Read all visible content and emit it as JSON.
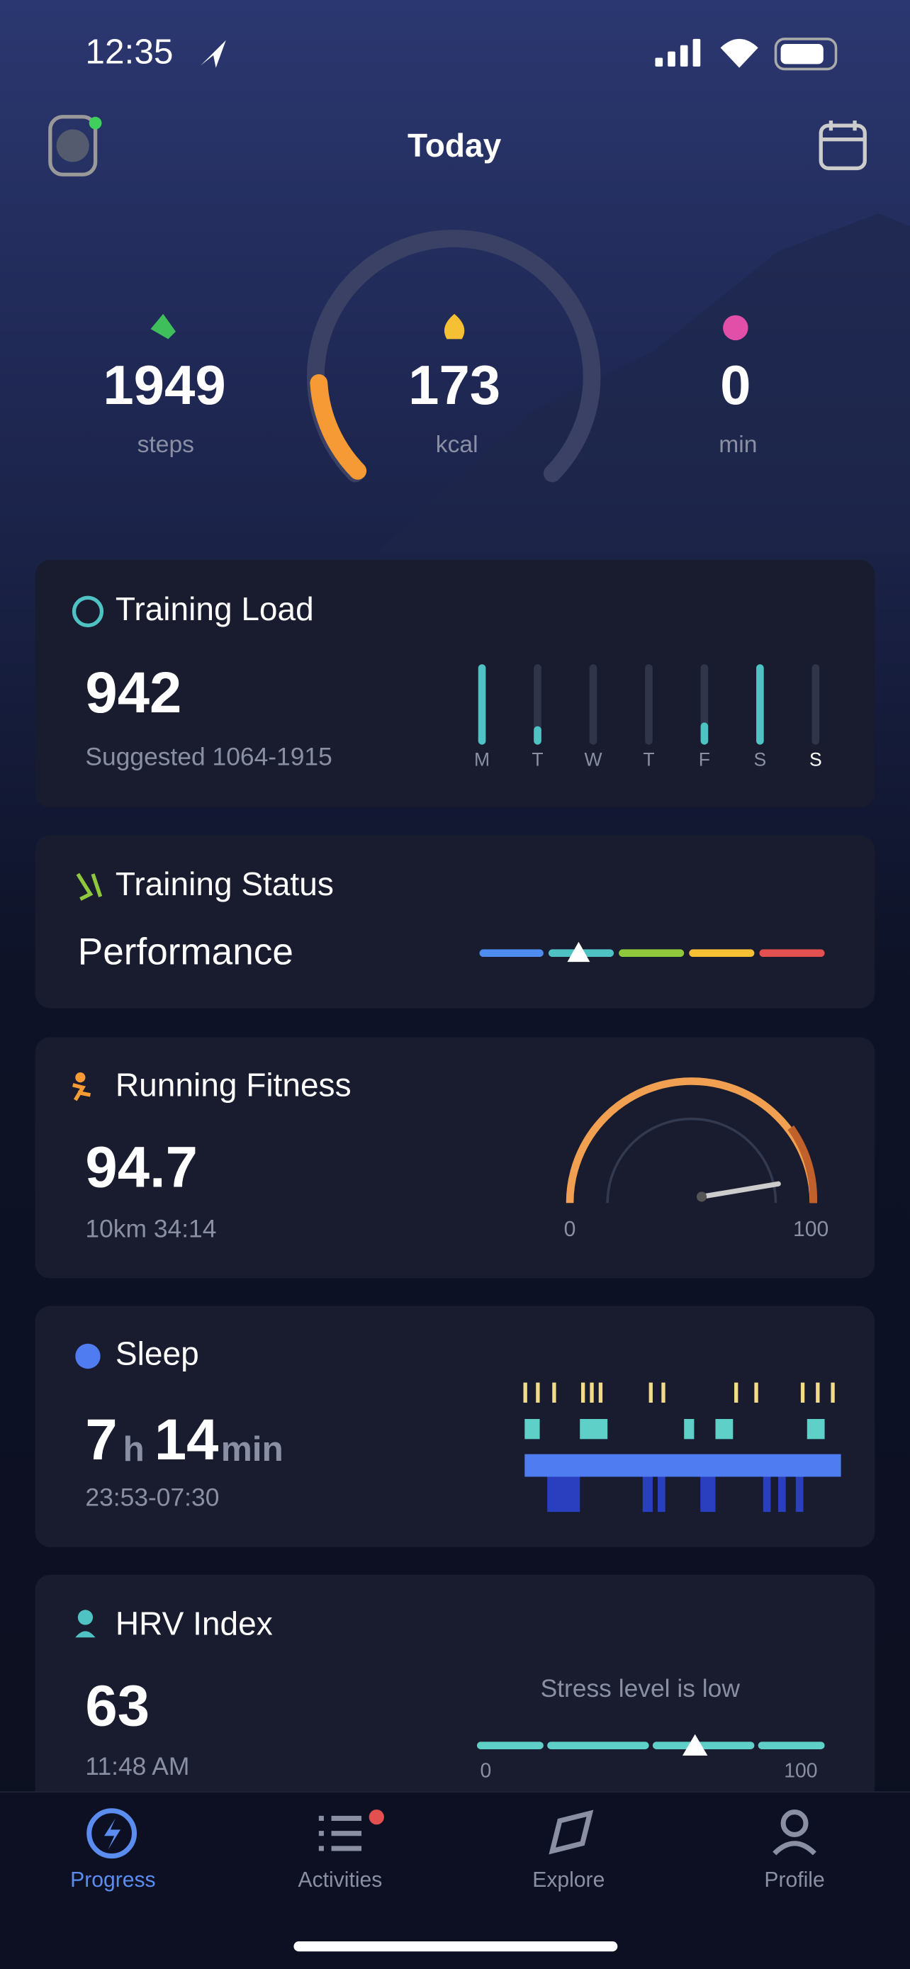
{
  "status_bar": {
    "time": "12:35"
  },
  "header": {
    "title": "Today"
  },
  "summary": {
    "steps": {
      "value": 1949,
      "unit": "steps"
    },
    "calories": {
      "value": 173,
      "unit": "kcal"
    },
    "minutes": {
      "value": 0,
      "unit": "min"
    }
  },
  "training_load": {
    "title": "Training Load",
    "value": 942,
    "suggested": "Suggested 1064-1915",
    "days": [
      "M",
      "T",
      "W",
      "T",
      "F",
      "S",
      "S"
    ],
    "levels": [
      100,
      15,
      0,
      0,
      20,
      100,
      0
    ]
  },
  "training_status": {
    "title": "Training Status",
    "status": "Performance"
  },
  "running_fitness": {
    "title": "Running Fitness",
    "value": 94.7,
    "detail": "10km 34:14",
    "gauge_min": 0,
    "gauge_max": 100
  },
  "sleep": {
    "title": "Sleep",
    "hours": "7",
    "hours_unit": "h",
    "minutes": "14",
    "minutes_unit": "min",
    "range": "23:53-07:30"
  },
  "hrv": {
    "title": "HRV Index",
    "value": 63,
    "time": "11:48 AM",
    "stress": "Stress level is low",
    "scale_min": 0,
    "scale_max": 100
  },
  "tabs": [
    "Progress",
    "Activities",
    "Explore",
    "Profile"
  ]
}
